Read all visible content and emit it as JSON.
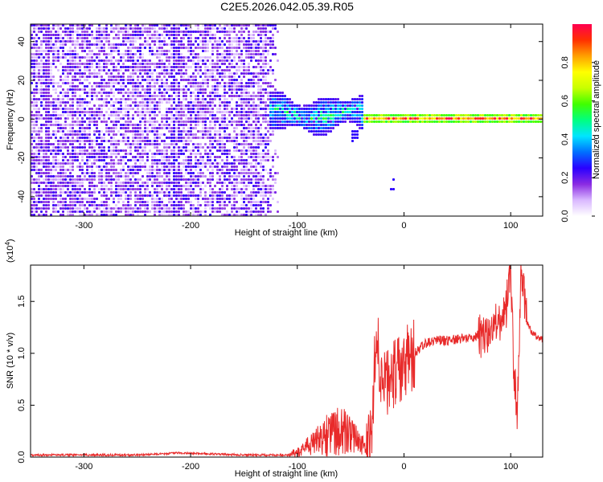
{
  "title": "C2E5.2026.042.05.39.R05",
  "colors": {
    "line": "#e82a2a",
    "spectrogram_dense": "#6a00f4",
    "spectrogram_light": "#d9b8ff"
  },
  "chart_data": [
    {
      "type": "heatmap",
      "title": "C2E5.2026.042.05.39.R05",
      "xlabel": "Height of straight line (km)",
      "ylabel": "Frequency (Hz)",
      "xlim": [
        -350,
        130
      ],
      "ylim": [
        -50,
        49
      ],
      "x_ticks": [
        -300,
        -200,
        -100,
        0,
        100
      ],
      "y_ticks": [
        -40,
        -20,
        0,
        20,
        40
      ],
      "grid": false,
      "colorbar": {
        "label": "Normalized spectral amplitude",
        "range": [
          0.0,
          1.0
        ],
        "ticks": [
          0.0,
          0.2,
          0.4,
          0.6,
          0.8
        ],
        "tick_labels": [
          "0.0",
          "0.2",
          "0.4",
          "0.6",
          "0.8"
        ],
        "colors": [
          "#ffffff",
          "#d9b8ff",
          "#8a2be2",
          "#2a00ff",
          "#0070ff",
          "#00e5ff",
          "#00ff80",
          "#40ff00",
          "#c8ff00",
          "#ffff00",
          "#ffa000",
          "#ff3000",
          "#ff0050"
        ]
      },
      "regions": [
        {
          "x_range": [
            -350,
            -118
          ],
          "frequency_range": [
            -50,
            49
          ],
          "amplitude": [
            0.05,
            0.25
          ],
          "pattern": "broadband noise"
        },
        {
          "x_range": [
            -128,
            -40
          ],
          "frequency_center": 3,
          "frequency_halfwidth": 8,
          "amplitude": [
            0.2,
            0.6
          ],
          "pattern": "turbulent"
        },
        {
          "x_range": [
            -40,
            130
          ],
          "frequency_center": 1,
          "frequency_halfwidth": 3,
          "amplitude": [
            0.4,
            1.0
          ],
          "pattern": "narrow carrier"
        }
      ],
      "streaks": [
        {
          "x": -217,
          "amplitude": 0.22
        },
        {
          "x": -212,
          "amplitude": 0.18
        },
        {
          "x": -335,
          "amplitude": 0.15
        },
        {
          "x": -312,
          "amplitude": 0.12
        }
      ],
      "features": [
        {
          "x": -47,
          "frequency": -8,
          "note": "dip"
        },
        {
          "x": -12,
          "frequency": -33,
          "note": "isolated point"
        }
      ]
    },
    {
      "type": "line",
      "xlabel": "Height of straight line (km)",
      "ylabel": "SNR (10 * v/v)",
      "y_scale_label": "(x10",
      "y_scale_exponent": "4",
      "xlim": [
        -350,
        130
      ],
      "ylim": [
        0,
        1.85
      ],
      "x_ticks": [
        -300,
        -200,
        -100,
        0,
        100
      ],
      "y_ticks": [
        0.0,
        0.5,
        1.0,
        1.5
      ],
      "y_tick_labels": [
        "0.0",
        "0.5",
        "1.0",
        "1.5"
      ],
      "grid": false,
      "series": [
        {
          "x": [
            -350,
            -300,
            -250,
            -210,
            -150,
            -110,
            -100,
            -90,
            -80,
            -70,
            -60,
            -50,
            -45,
            -40,
            -35,
            -30,
            -26,
            -22,
            -18,
            -15,
            -10,
            -5,
            0,
            5,
            10,
            15,
            20,
            25,
            30,
            40,
            50,
            60,
            70,
            80,
            85,
            90,
            95,
            100,
            103,
            106,
            110,
            115,
            120,
            125,
            130
          ],
          "y": [
            0.02,
            0.02,
            0.02,
            0.04,
            0.02,
            0.02,
            0.08,
            0.15,
            0.25,
            0.35,
            0.4,
            0.3,
            0.25,
            0.18,
            0.12,
            0.3,
            1.35,
            0.6,
            0.75,
            0.75,
            0.8,
            0.85,
            0.9,
            0.95,
            1.0,
            1.05,
            1.1,
            1.1,
            1.12,
            1.12,
            1.14,
            1.15,
            1.17,
            1.17,
            1.25,
            1.3,
            1.35,
            1.85,
            0.8,
            0.45,
            1.85,
            1.3,
            1.2,
            1.15,
            1.14
          ]
        }
      ]
    }
  ]
}
